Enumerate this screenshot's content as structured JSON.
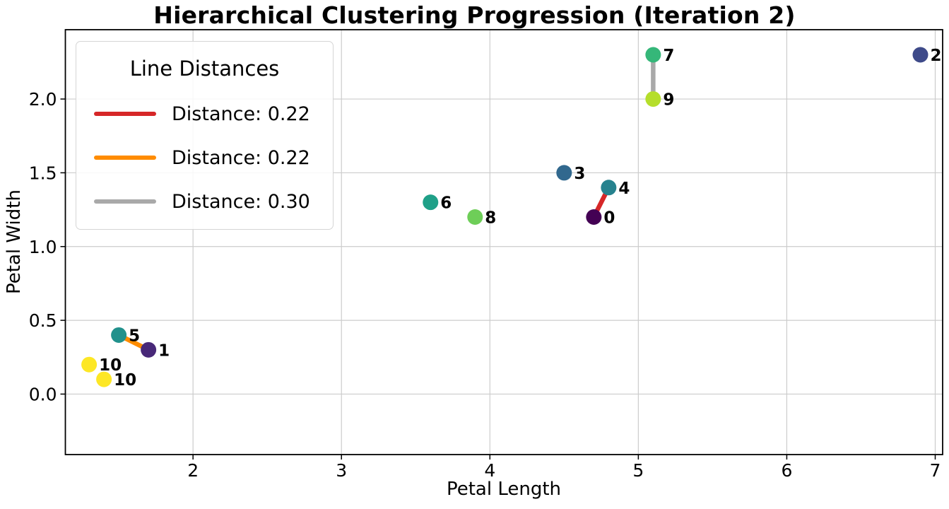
{
  "chart_data": {
    "type": "scatter",
    "title": "Hierarchical Clustering Progression (Iteration 2)",
    "xlabel": "Petal Length",
    "ylabel": "Petal Width",
    "xlim": [
      1.14,
      7.05
    ],
    "ylim": [
      -0.41,
      2.47
    ],
    "xticks": [
      2,
      3,
      4,
      5,
      6,
      7
    ],
    "xtick_labels": [
      "2",
      "3",
      "4",
      "5",
      "6",
      "7"
    ],
    "yticks": [
      0.0,
      0.5,
      1.0,
      1.5,
      2.0
    ],
    "ytick_labels": [
      "0.0",
      "0.5",
      "1.0",
      "1.5",
      "2.0"
    ],
    "grid": true,
    "grid_color": "#cccccc",
    "points": [
      {
        "label": "0",
        "x": 4.7,
        "y": 1.2,
        "color": "#440154"
      },
      {
        "label": "1",
        "x": 1.7,
        "y": 0.3,
        "color": "#482878"
      },
      {
        "label": "2",
        "x": 6.9,
        "y": 2.3,
        "color": "#3e4a89"
      },
      {
        "label": "3",
        "x": 4.5,
        "y": 1.5,
        "color": "#31688e"
      },
      {
        "label": "4",
        "x": 4.8,
        "y": 1.4,
        "color": "#26828e"
      },
      {
        "label": "5",
        "x": 1.5,
        "y": 0.4,
        "color": "#21918c"
      },
      {
        "label": "6",
        "x": 3.6,
        "y": 1.3,
        "color": "#1fa088"
      },
      {
        "label": "7",
        "x": 5.1,
        "y": 2.3,
        "color": "#35b779"
      },
      {
        "label": "8",
        "x": 3.9,
        "y": 1.2,
        "color": "#6ece58"
      },
      {
        "label": "9",
        "x": 5.1,
        "y": 2.0,
        "color": "#b5de2b"
      },
      {
        "label": "10",
        "x": 1.3,
        "y": 0.2,
        "color": "#fde725"
      },
      {
        "label": "10",
        "x": 1.4,
        "y": 0.1,
        "color": "#fde725"
      }
    ],
    "lines": [
      {
        "x1": 4.7,
        "y1": 1.2,
        "x2": 4.8,
        "y2": 1.4,
        "color": "#d62728",
        "label": "Distance: 0.22"
      },
      {
        "x1": 1.5,
        "y1": 0.4,
        "x2": 1.7,
        "y2": 0.3,
        "color": "#ff8c00",
        "label": "Distance: 0.22"
      },
      {
        "x1": 5.1,
        "y1": 2.3,
        "x2": 5.1,
        "y2": 2.0,
        "color": "#a9a9a9",
        "label": "Distance: 0.30"
      }
    ],
    "legend": {
      "title": "Line Distances",
      "position": "upper left",
      "items": [
        {
          "label": "Distance: 0.22",
          "color": "#d62728"
        },
        {
          "label": "Distance: 0.22",
          "color": "#ff8c00"
        },
        {
          "label": "Distance: 0.30",
          "color": "#a9a9a9"
        }
      ]
    }
  }
}
